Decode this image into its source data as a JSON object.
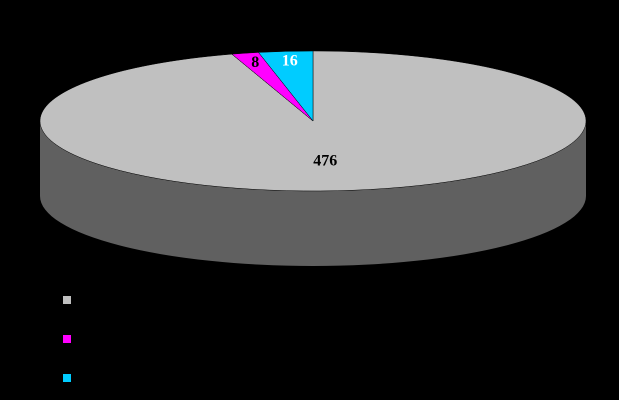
{
  "chart_data": {
    "type": "pie",
    "categories": [
      null,
      null,
      null
    ],
    "values": [
      476,
      8,
      16
    ],
    "colors": [
      "#c0c0c0",
      "#ff00ff",
      "#00ccff"
    ],
    "side_color": "#606060",
    "label_colors": [
      "#000000",
      "#000000",
      "#ffffff"
    ],
    "legend": "bottom-left"
  }
}
